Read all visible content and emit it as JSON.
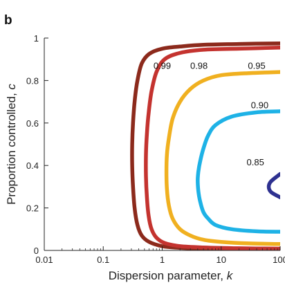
{
  "panel_label": "b",
  "chart_data": {
    "type": "line",
    "title": "",
    "xlabel": "Dispersion parameter, k",
    "xlabel_text": "Dispersion parameter, ",
    "xlabel_var": "k",
    "ylabel": "Proportion controlled, c",
    "ylabel_text": "Proportion controlled, ",
    "ylabel_var": "c",
    "x_scale": "log",
    "xlim": [
      0.01,
      100
    ],
    "ylim": [
      0,
      1
    ],
    "x_ticks": [
      0.01,
      0.1,
      1,
      10,
      100
    ],
    "x_tick_labels": [
      "0.01",
      "0.1",
      "1",
      "10",
      "100"
    ],
    "y_ticks": [
      0,
      0.2,
      0.4,
      0.6,
      0.8,
      1
    ],
    "y_tick_labels": [
      "0",
      "0.2",
      "0.4",
      "0.6",
      "0.8",
      "1"
    ],
    "grid": false,
    "legend": "none",
    "series": [
      {
        "name": "0.99",
        "color": "#8c2a1c",
        "x": [
          100,
          20,
          5,
          2,
          1,
          0.6,
          0.45,
          0.38,
          0.34,
          0.32,
          0.31,
          0.31,
          0.32,
          0.34,
          0.38,
          0.45,
          0.6,
          1,
          2,
          5,
          20,
          100
        ],
        "y": [
          0.975,
          0.972,
          0.968,
          0.96,
          0.95,
          0.925,
          0.88,
          0.8,
          0.7,
          0.6,
          0.5,
          0.4,
          0.3,
          0.2,
          0.12,
          0.07,
          0.04,
          0.02,
          0.012,
          0.008,
          0.005,
          0.004
        ]
      },
      {
        "name": "0.98",
        "color": "#c4332f",
        "x": [
          100,
          20,
          5,
          2,
          1.1,
          0.8,
          0.66,
          0.59,
          0.55,
          0.53,
          0.53,
          0.55,
          0.59,
          0.66,
          0.8,
          1.1,
          2,
          5,
          20,
          100
        ],
        "y": [
          0.955,
          0.95,
          0.945,
          0.93,
          0.9,
          0.84,
          0.75,
          0.65,
          0.55,
          0.45,
          0.35,
          0.25,
          0.16,
          0.1,
          0.06,
          0.035,
          0.02,
          0.014,
          0.01,
          0.008
        ]
      },
      {
        "name": "0.95",
        "color": "#f0b020",
        "x": [
          100,
          30,
          10,
          5,
          3,
          2,
          1.5,
          1.3,
          1.2,
          1.18,
          1.2,
          1.3,
          1.5,
          2,
          3,
          5,
          10,
          30,
          100
        ],
        "y": [
          0.84,
          0.835,
          0.825,
          0.8,
          0.76,
          0.7,
          0.62,
          0.53,
          0.45,
          0.37,
          0.29,
          0.21,
          0.15,
          0.1,
          0.07,
          0.05,
          0.04,
          0.033,
          0.03
        ]
      },
      {
        "name": "0.90",
        "color": "#1eb2e6",
        "x": [
          100,
          40,
          15,
          8,
          6,
          5,
          4.4,
          4.1,
          4,
          4.1,
          4.4,
          5,
          6,
          8,
          15,
          40,
          100
        ],
        "y": [
          0.655,
          0.65,
          0.63,
          0.59,
          0.54,
          0.48,
          0.42,
          0.37,
          0.33,
          0.28,
          0.23,
          0.18,
          0.15,
          0.12,
          0.1,
          0.09,
          0.088
        ]
      },
      {
        "name": "0.85",
        "color": "#2e3190",
        "x": [
          100,
          70,
          64,
          70,
          100
        ],
        "y": [
          0.36,
          0.325,
          0.3,
          0.275,
          0.25
        ]
      }
    ]
  }
}
